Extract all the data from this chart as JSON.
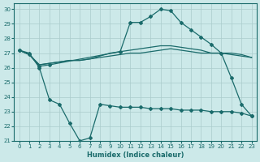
{
  "xlabel": "Humidex (Indice chaleur)",
  "background_color": "#cce9e9",
  "grid_color": "#aacccc",
  "line_color": "#1a6b6b",
  "xlim": [
    -0.5,
    23.5
  ],
  "ylim": [
    21,
    30.4
  ],
  "x_ticks": [
    0,
    1,
    2,
    3,
    4,
    5,
    6,
    7,
    8,
    9,
    10,
    11,
    12,
    13,
    14,
    15,
    16,
    17,
    18,
    19,
    20,
    21,
    22,
    23
  ],
  "y_ticks": [
    21,
    22,
    23,
    24,
    25,
    26,
    27,
    28,
    29,
    30
  ],
  "line_upper_peak": {
    "x": [
      0,
      1,
      2,
      3,
      10,
      11,
      12,
      13,
      14,
      15,
      16,
      17,
      18,
      19,
      20,
      21,
      22,
      23
    ],
    "y": [
      27.2,
      26.9,
      26.1,
      26.2,
      27.1,
      29.1,
      29.1,
      29.5,
      30.0,
      29.9,
      29.1,
      28.6,
      28.1,
      27.6,
      27.0,
      25.3,
      23.5,
      22.7
    ]
  },
  "line_upper_flat1": {
    "x": [
      0,
      1,
      2,
      3,
      4,
      5,
      6,
      7,
      8,
      9,
      10,
      11,
      12,
      13,
      14,
      15,
      16,
      17,
      18,
      19,
      20,
      21,
      22,
      23
    ],
    "y": [
      27.2,
      26.9,
      26.2,
      26.3,
      26.4,
      26.5,
      26.5,
      26.6,
      26.7,
      26.8,
      26.9,
      27.0,
      27.0,
      27.1,
      27.2,
      27.3,
      27.2,
      27.1,
      27.0,
      27.0,
      27.0,
      26.9,
      26.8,
      26.7
    ]
  },
  "line_upper_flat2": {
    "x": [
      0,
      1,
      2,
      3,
      4,
      5,
      6,
      7,
      8,
      9,
      10,
      11,
      12,
      13,
      14,
      15,
      16,
      17,
      18,
      19,
      20,
      21,
      22,
      23
    ],
    "y": [
      27.2,
      26.9,
      26.2,
      26.3,
      26.4,
      26.5,
      26.5,
      26.6,
      26.8,
      27.0,
      27.1,
      27.2,
      27.3,
      27.4,
      27.5,
      27.5,
      27.4,
      27.3,
      27.2,
      27.0,
      27.0,
      27.0,
      26.9,
      26.7
    ]
  },
  "line_lower_dip": {
    "x": [
      0,
      1,
      2,
      3,
      4,
      5,
      6,
      7,
      8,
      9,
      10,
      11,
      12,
      13,
      14,
      15,
      16,
      17,
      18,
      19,
      20,
      21,
      22,
      23
    ],
    "y": [
      27.2,
      27.0,
      26.0,
      23.8,
      23.5,
      22.2,
      21.0,
      21.2,
      23.5,
      23.4,
      23.3,
      23.3,
      23.3,
      23.2,
      23.2,
      23.2,
      23.1,
      23.1,
      23.1,
      23.0,
      23.0,
      23.0,
      22.9,
      22.7
    ]
  }
}
